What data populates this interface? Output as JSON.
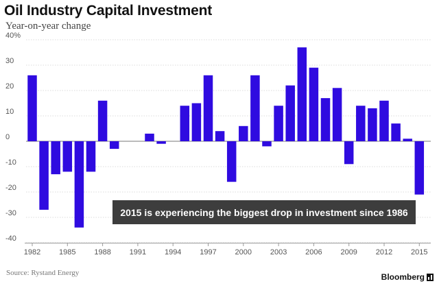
{
  "header": {
    "title": "Oil Industry Capital Investment",
    "subtitle": "Year-on-year change"
  },
  "footer": {
    "source": "Source: Rystand Energy",
    "brand": "Bloomberg"
  },
  "colors": {
    "bar": "#2f0be0",
    "annotation_bg": "#3d3d3d",
    "annotation_text": "#ffffff",
    "grid": "#d0d0d0",
    "axis_text": "#555555"
  },
  "chart_data": {
    "type": "bar",
    "title": "Oil Industry Capital Investment",
    "subtitle": "Year-on-year change",
    "xlabel": "",
    "ylabel": "",
    "unit": "%",
    "ylim": [
      -40,
      40
    ],
    "yticks": [
      40,
      30,
      20,
      10,
      0,
      -10,
      -20,
      -30,
      -40
    ],
    "ytick_labels": [
      "40%",
      "30",
      "20",
      "10",
      "0",
      "-10",
      "-20",
      "-30",
      "-40"
    ],
    "xtick_years": [
      1982,
      1985,
      1988,
      1991,
      1994,
      1997,
      2000,
      2003,
      2006,
      2009,
      2012,
      2015
    ],
    "grid": true,
    "categories": [
      1982,
      1983,
      1984,
      1985,
      1986,
      1987,
      1988,
      1989,
      1990,
      1991,
      1992,
      1993,
      1994,
      1995,
      1996,
      1997,
      1998,
      1999,
      2000,
      2001,
      2002,
      2003,
      2004,
      2005,
      2006,
      2007,
      2008,
      2009,
      2010,
      2011,
      2012,
      2013,
      2014,
      2015
    ],
    "values": [
      26,
      -27,
      -13,
      -12,
      -34,
      -12,
      16,
      -3,
      0,
      0,
      3,
      -1,
      0,
      14,
      15,
      26,
      4,
      -16,
      6,
      26,
      -2,
      14,
      22,
      37,
      29,
      17,
      21,
      -9,
      14,
      13,
      16,
      7,
      1,
      -21
    ],
    "annotation": "2015 is experiencing the biggest drop in investment since 1986"
  }
}
